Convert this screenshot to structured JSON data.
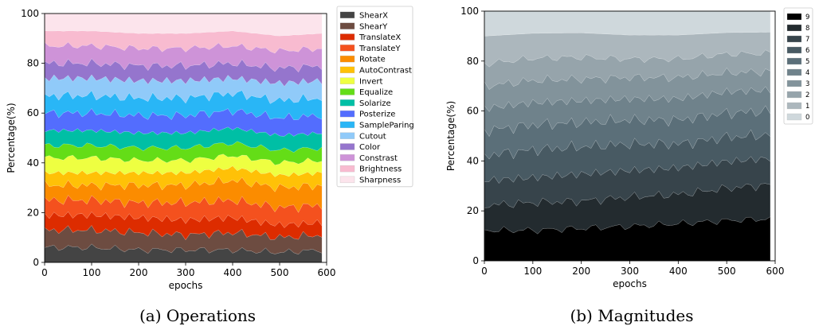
{
  "chart_data": [
    {
      "type": "area",
      "caption": "(a) Operations",
      "xlabel": "epochs",
      "ylabel": "Percentage(%)",
      "xlim": [
        0,
        600
      ],
      "ylim": [
        0,
        100
      ],
      "xticks": [
        0,
        100,
        200,
        300,
        400,
        500,
        600
      ],
      "yticks": [
        0,
        20,
        40,
        60,
        80,
        100
      ],
      "x": [
        0,
        100,
        200,
        300,
        400,
        500,
        590
      ],
      "legend_position": "right-outside",
      "series": [
        {
          "name": "ShearX",
          "color": "#444444",
          "values": [
            6,
            6,
            5,
            5,
            5,
            4,
            5
          ]
        },
        {
          "name": "ShearY",
          "color": "#6d4c41",
          "values": [
            7,
            7,
            7,
            6,
            7,
            6,
            6
          ]
        },
        {
          "name": "TranslateX",
          "color": "#dd2c00",
          "values": [
            6,
            6,
            6,
            6,
            6,
            5,
            5
          ]
        },
        {
          "name": "TranslateY",
          "color": "#f4511e",
          "values": [
            6,
            6,
            6,
            7,
            7,
            7,
            7
          ]
        },
        {
          "name": "Rotate",
          "color": "#fb8c00",
          "values": [
            6,
            6,
            7,
            7,
            8,
            8,
            8
          ]
        },
        {
          "name": "AutoContrast",
          "color": "#ffc107",
          "values": [
            5,
            5,
            5,
            5,
            5,
            5,
            5
          ]
        },
        {
          "name": "Invert",
          "color": "#eeff41",
          "values": [
            6,
            6,
            5,
            5,
            5,
            5,
            5
          ]
        },
        {
          "name": "Equalize",
          "color": "#64dd17",
          "values": [
            5,
            5,
            5,
            5,
            5,
            5,
            5
          ]
        },
        {
          "name": "Solarize",
          "color": "#00bfa5",
          "values": [
            6,
            6,
            6,
            6,
            6,
            6,
            6
          ]
        },
        {
          "name": "Posterize",
          "color": "#536dfe",
          "values": [
            7,
            7,
            7,
            7,
            7,
            7,
            7
          ]
        },
        {
          "name": "SampleParing",
          "color": "#29b6f6",
          "values": [
            7,
            7,
            7,
            7,
            7,
            7,
            7
          ]
        },
        {
          "name": "Cutout",
          "color": "#90caf9",
          "values": [
            7,
            7,
            7,
            7,
            6,
            7,
            7
          ]
        },
        {
          "name": "Color",
          "color": "#9575cd",
          "values": [
            6,
            6,
            6,
            6,
            6,
            6,
            6
          ]
        },
        {
          "name": "Constrast",
          "color": "#ce93d8",
          "values": [
            7,
            7,
            7,
            7,
            7,
            7,
            7
          ]
        },
        {
          "name": "Brightness",
          "color": "#f8bbd0",
          "values": [
            6,
            6,
            6,
            6,
            6,
            6,
            6
          ]
        },
        {
          "name": "Sharpness",
          "color": "#fce4ec",
          "values": [
            7,
            7,
            8,
            8,
            7,
            9,
            8
          ]
        }
      ]
    },
    {
      "type": "area",
      "caption": "(b) Magnitudes",
      "xlabel": "epochs",
      "ylabel": "Percentage(%)",
      "xlim": [
        0,
        600
      ],
      "ylim": [
        0,
        100
      ],
      "xticks": [
        0,
        100,
        200,
        300,
        400,
        500,
        600
      ],
      "yticks": [
        0,
        20,
        40,
        60,
        80,
        100
      ],
      "x": [
        0,
        100,
        200,
        300,
        400,
        500,
        590
      ],
      "legend_position": "right-outside",
      "legend_order": [
        "9",
        "8",
        "7",
        "6",
        "5",
        "4",
        "3",
        "2",
        "1",
        "0"
      ],
      "series": [
        {
          "name": "9",
          "color": "#000000",
          "values": [
            11,
            11,
            12,
            13,
            14,
            15,
            16
          ]
        },
        {
          "name": "8",
          "color": "#232b2f",
          "values": [
            9,
            10,
            10,
            11,
            11,
            12,
            13
          ]
        },
        {
          "name": "7",
          "color": "#37444b",
          "values": [
            9,
            9,
            10,
            10,
            10,
            10,
            10
          ]
        },
        {
          "name": "6",
          "color": "#485a63",
          "values": [
            9,
            10,
            10,
            10,
            9,
            9,
            9
          ]
        },
        {
          "name": "5",
          "color": "#5b6f79",
          "values": [
            9,
            9,
            9,
            9,
            9,
            9,
            9
          ]
        },
        {
          "name": "4",
          "color": "#6f828b",
          "values": [
            8,
            8,
            8,
            8,
            8,
            8,
            8
          ]
        },
        {
          "name": "3",
          "color": "#82939b",
          "values": [
            8,
            8,
            8,
            8,
            8,
            7,
            7
          ]
        },
        {
          "name": "2",
          "color": "#96a4ab",
          "values": [
            8,
            8,
            8,
            7,
            7,
            7,
            7
          ]
        },
        {
          "name": "1",
          "color": "#acb7bd",
          "values": [
            10,
            9,
            9,
            9,
            9,
            8,
            8
          ]
        },
        {
          "name": "0",
          "color": "#cfd8dc",
          "values": [
            9,
            8,
            8,
            9,
            9,
            8,
            8
          ]
        }
      ]
    }
  ]
}
